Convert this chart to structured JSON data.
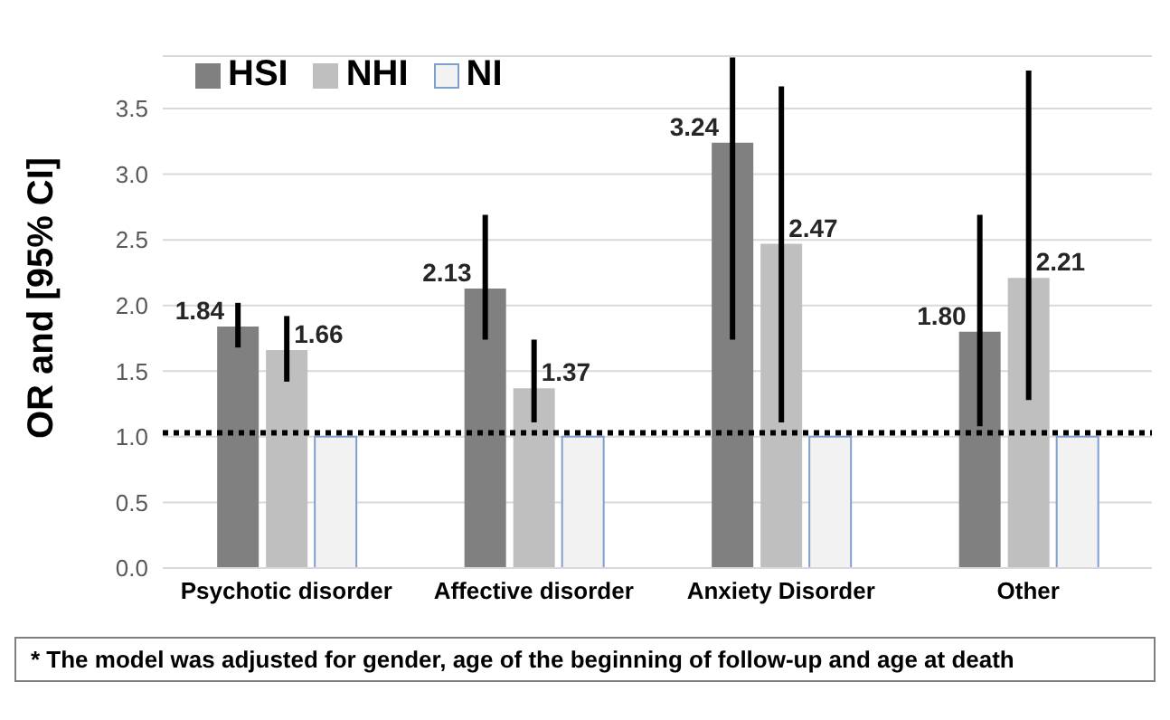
{
  "chart_data": {
    "type": "bar",
    "ylabel": "OR and [95% CI]",
    "categories": [
      "Psychotic disorder",
      "Affective disorder",
      "Anxiety Disorder",
      "Other"
    ],
    "series": [
      {
        "name": "HSI",
        "color": "#808080",
        "values": [
          1.84,
          2.13,
          3.24,
          1.8
        ],
        "errors": [
          [
            1.68,
            2.02
          ],
          [
            1.74,
            2.69
          ],
          [
            1.74,
            3.89
          ],
          [
            1.08,
            2.69
          ]
        ],
        "value_labels": [
          "1.84",
          "2.13",
          "3.24",
          "1.80"
        ]
      },
      {
        "name": "NHI",
        "color": "#bfbfbf",
        "values": [
          1.66,
          1.37,
          2.47,
          2.21
        ],
        "errors": [
          [
            1.42,
            1.92
          ],
          [
            1.11,
            1.74
          ],
          [
            1.11,
            3.67
          ],
          [
            1.28,
            3.79
          ]
        ],
        "value_labels": [
          "1.66",
          "1.37",
          "2.47",
          "2.21"
        ]
      },
      {
        "name": "NI",
        "color": "#f2f2f2",
        "values": [
          1.0,
          1.0,
          1.0,
          1.0
        ]
      }
    ],
    "ylim": [
      0,
      3.9
    ],
    "yticks": [
      {
        "value": 0,
        "label": "0.0"
      },
      0.5,
      {
        "value": 1,
        "label": "1.0"
      },
      1.5,
      {
        "value": 2,
        "label": "2.0"
      },
      2.5,
      {
        "value": 3,
        "label": "3.0"
      },
      3.5
    ],
    "grid": "y",
    "legend": "top left",
    "ref_lines": [
      {
        "axis": "y",
        "value": 1.03,
        "line_style": "dotted",
        "color": "#000000"
      }
    ],
    "annotations": [
      "* The model was adjusted for gender, age of the beginning of follow-up and age at death"
    ]
  }
}
